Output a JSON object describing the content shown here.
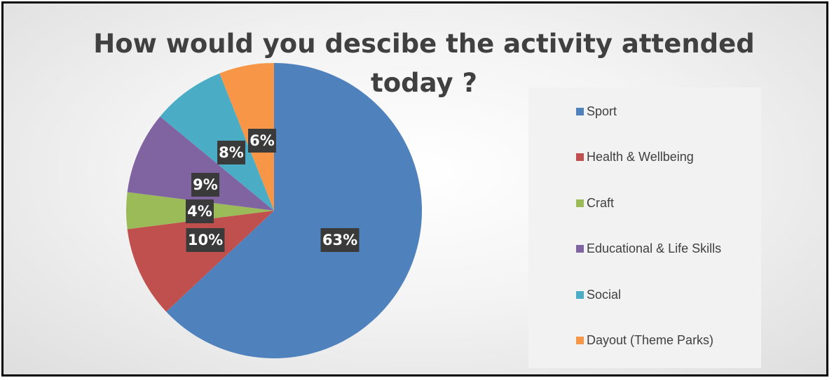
{
  "chart_data": {
    "type": "pie",
    "title": "How would you descibe the activity attended today ?",
    "categories": [
      "Sport",
      "Health & Wellbeing",
      "Craft",
      "Educational & Life Skills",
      "Social",
      "Dayout (Theme Parks)"
    ],
    "values": [
      63,
      10,
      4,
      9,
      8,
      6
    ],
    "data_labels": [
      "63%",
      "10%",
      "4%",
      "9%",
      "8%",
      "6%"
    ],
    "colors": [
      "#4f81bd",
      "#c0504d",
      "#9bbb59",
      "#8064a2",
      "#4bacc6",
      "#f79646"
    ],
    "legend_position": "right",
    "start_angle": "12 o'clock",
    "direction": "clockwise"
  }
}
